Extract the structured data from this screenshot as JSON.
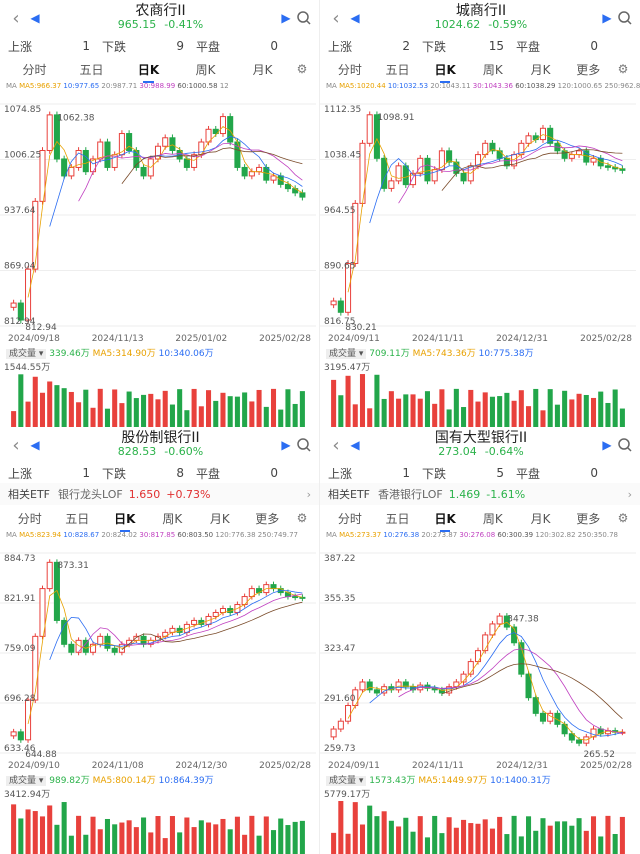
{
  "panels": [
    {
      "title": "农商行II",
      "price": "965.15",
      "change": "-0.41%",
      "rise_label": "上涨",
      "rise": "1",
      "fall_label": "下跌",
      "fall": "9",
      "flat_label": "平盘",
      "flat": "0",
      "etf": null,
      "tabs": [
        "分时",
        "五日",
        "日K",
        "周K",
        "月K"
      ],
      "ma": {
        "label": "MA",
        "m5": "MA5:966.37",
        "m10": "10:977.65",
        "m20": "20:987.71",
        "m30": "30:988.99",
        "m60": "60:1000.58",
        "m120": "12"
      },
      "y_labels": [
        "1074.85",
        "1006.25",
        "937.64",
        "869.04",
        "812.94"
      ],
      "high_label": "1062.38",
      "low_label": "812.94",
      "dates": [
        "2024/09/18",
        "2024/11/13",
        "2025/01/02",
        "2025/02/28"
      ],
      "vol": {
        "label": "成交量",
        "v": "339.46万",
        "v5": "MA5:314.90万",
        "v10": "10:340.06万",
        "max": "1544.55万"
      },
      "chart_data": {
        "type": "candlestick",
        "ylim": [
          812.94,
          1074.85
        ],
        "high": 1062.38,
        "low": 812.94,
        "last": 965.15,
        "close": [
          840,
          820,
          880,
          960,
          1020,
          1062,
          1010,
          990,
          1000,
          1020,
          995,
          1010,
          1030,
          1000,
          1015,
          1040,
          1020,
          1000,
          990,
          1010,
          1025,
          1035,
          1020,
          1010,
          1000,
          1015,
          1030,
          1045,
          1040,
          1060,
          1030,
          1000,
          990,
          995,
          1000,
          985,
          990,
          980,
          975,
          970,
          965
        ]
      }
    },
    {
      "title": "城商行II",
      "price": "1024.62",
      "change": "-0.59%",
      "rise_label": "上涨",
      "rise": "2",
      "fall_label": "下跌",
      "fall": "15",
      "flat_label": "平盘",
      "flat": "0",
      "etf": null,
      "tabs": [
        "分时",
        "五日",
        "日K",
        "周K",
        "月K",
        "更多"
      ],
      "ma": {
        "label": "MA",
        "m5": "MA5:1020.44",
        "m10": "10:1032.53",
        "m20": "20:1043.11",
        "m30": "30:1043.36",
        "m60": "60:1038.29",
        "m120": "120:1000.65",
        "extra": "250:962.84"
      },
      "y_labels": [
        "1112.35",
        "1038.45",
        "964.55",
        "890.65",
        "816.75"
      ],
      "high_label": "1098.91",
      "low_label": "830.21",
      "dates": [
        "2024/09/11",
        "2024/11/11",
        "2024/12/31",
        "2025/02/28"
      ],
      "vol": {
        "label": "成交量",
        "v": "709.11万",
        "v5": "MA5:743.36万",
        "v10": "10:775.38万",
        "max": "3195.47万"
      },
      "chart_data": {
        "type": "candlestick",
        "ylim": [
          816.75,
          1112.35
        ],
        "high": 1098.91,
        "low": 830.21,
        "last": 1024.62,
        "close": [
          850,
          835,
          900,
          980,
          1060,
          1098,
          1040,
          1000,
          1010,
          1030,
          1005,
          1020,
          1040,
          1010,
          1025,
          1050,
          1035,
          1020,
          1010,
          1030,
          1045,
          1060,
          1050,
          1040,
          1030,
          1045,
          1060,
          1070,
          1065,
          1080,
          1060,
          1050,
          1040,
          1045,
          1050,
          1035,
          1040,
          1030,
          1028,
          1026,
          1024
        ]
      }
    },
    {
      "title": "股份制银行II",
      "price": "828.53",
      "change": "-0.60%",
      "rise_label": "上涨",
      "rise": "1",
      "fall_label": "下跌",
      "fall": "8",
      "flat_label": "平盘",
      "flat": "0",
      "etf": {
        "label": "相关ETF",
        "name": "银行龙头LOF",
        "price": "1.650",
        "change": "+0.73%"
      },
      "tabs": [
        "分时",
        "五日",
        "日K",
        "周K",
        "月K",
        "更多"
      ],
      "ma": {
        "label": "MA",
        "m5": "MA5:823.94",
        "m10": "10:828.67",
        "m20": "20:824.02",
        "m30": "30:817.85",
        "m60": "60:803.50",
        "m120": "120:776.38",
        "extra": "250:749.77"
      },
      "y_labels": [
        "884.73",
        "821.91",
        "759.09",
        "696.28",
        "633.46"
      ],
      "high_label": "873.31",
      "low_label": "644.88",
      "dates": [
        "2024/09/10",
        "2024/11/08",
        "2024/12/30",
        "2025/02/28"
      ],
      "vol": {
        "label": "成交量",
        "v": "989.82万",
        "v5": "MA5:800.14万",
        "v10": "10:864.39万",
        "max": "3412.94万"
      },
      "chart_data": {
        "type": "candlestick",
        "ylim": [
          633.46,
          884.73
        ],
        "high": 873.31,
        "low": 644.88,
        "last": 828.53,
        "close": [
          660,
          650,
          700,
          780,
          840,
          873,
          800,
          770,
          760,
          775,
          760,
          770,
          780,
          765,
          760,
          770,
          775,
          780,
          770,
          775,
          780,
          785,
          790,
          785,
          795,
          800,
          795,
          805,
          810,
          815,
          810,
          820,
          830,
          840,
          835,
          845,
          840,
          835,
          830,
          829,
          828
        ]
      }
    },
    {
      "title": "国有大型银行II",
      "price": "273.04",
      "change": "-0.64%",
      "rise_label": "上涨",
      "rise": "1",
      "fall_label": "下跌",
      "fall": "5",
      "flat_label": "平盘",
      "flat": "0",
      "etf": {
        "label": "相关ETF",
        "name": "香港银行LOF",
        "price": "1.469",
        "change": "-1.61%"
      },
      "tabs": [
        "分时",
        "五日",
        "日K",
        "周K",
        "月K",
        "更多"
      ],
      "ma": {
        "label": "MA",
        "m5": "MA5:273.37",
        "m10": "10:276.38",
        "m20": "20:273.87",
        "m30": "30:276.08",
        "m60": "60:300.39",
        "m120": "120:302.82",
        "extra": "250:350.78"
      },
      "y_labels": [
        "387.22",
        "355.35",
        "323.47",
        "291.60",
        "259.73"
      ],
      "high_label": "347.38",
      "low_label": "265.52",
      "dates": [
        "2024/09/11",
        "2024/11/11",
        "2024/12/31",
        "2025/02/28"
      ],
      "vol": {
        "label": "成交量",
        "v": "1573.43万",
        "v5": "MA5:1449.97万",
        "v10": "10:1400.31万",
        "max": "5779.17万"
      },
      "chart_data": {
        "type": "candlestick",
        "ylim": [
          259.73,
          387.22
        ],
        "high": 347.38,
        "low": 265.52,
        "last": 273.04,
        "close": [
          275,
          280,
          290,
          300,
          305,
          300,
          298,
          302,
          300,
          305,
          302,
          300,
          303,
          301,
          300,
          298,
          302,
          305,
          310,
          318,
          325,
          335,
          342,
          347,
          340,
          330,
          310,
          295,
          285,
          280,
          285,
          278,
          272,
          268,
          266,
          270,
          275,
          272,
          274,
          273,
          273
        ]
      }
    }
  ]
}
